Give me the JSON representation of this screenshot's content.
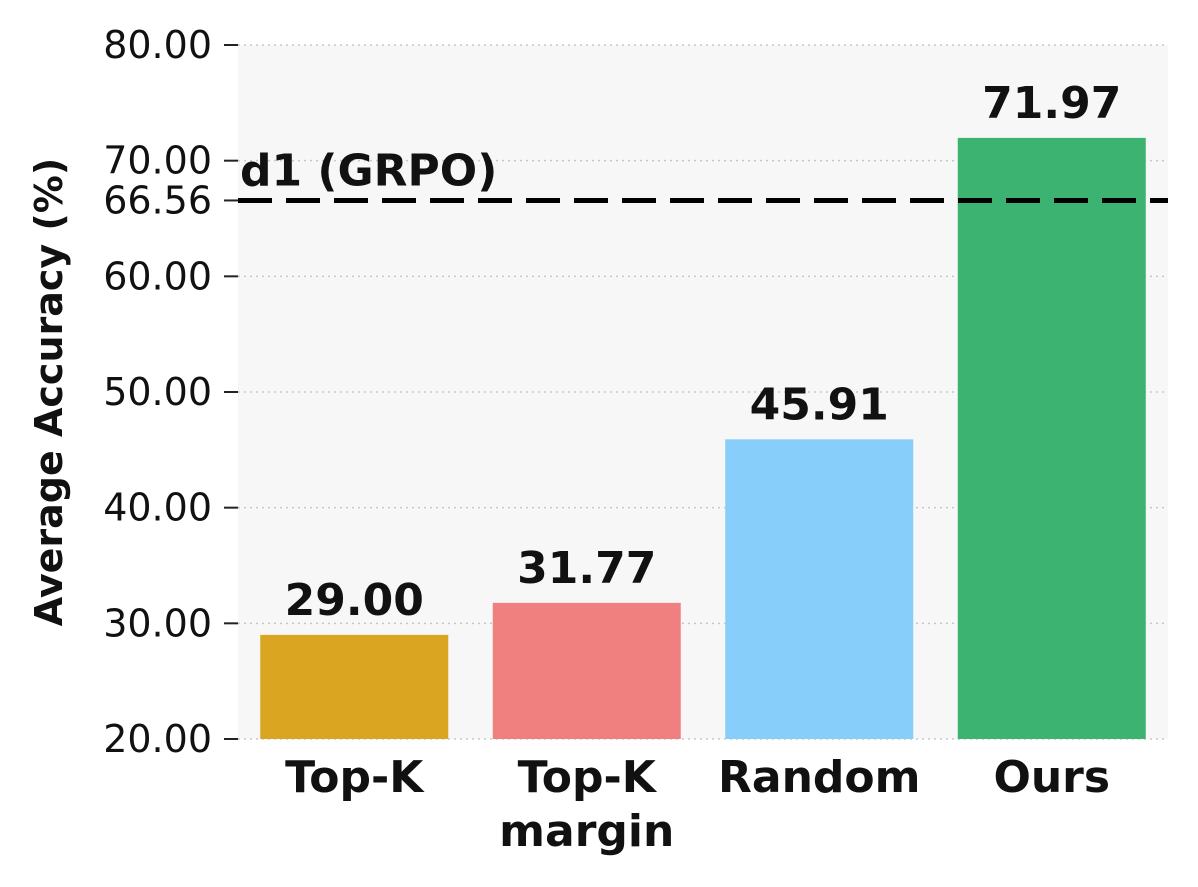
{
  "chart_data": {
    "type": "bar",
    "title": "",
    "xlabel": "",
    "ylabel": "Average Accuracy (%)",
    "ylim": [
      20,
      80
    ],
    "yticks": [
      "20.00",
      "30.00",
      "40.00",
      "50.00",
      "60.00",
      "70.00",
      "80.00"
    ],
    "grid": "horizontal dotted",
    "categories": [
      {
        "lines": [
          "Top-K"
        ]
      },
      {
        "lines": [
          "Top-K",
          "margin"
        ]
      },
      {
        "lines": [
          "Random"
        ]
      },
      {
        "lines": [
          "Ours"
        ]
      }
    ],
    "values": [
      29.0,
      31.77,
      45.91,
      71.97
    ],
    "value_labels": [
      "29.00",
      "31.77",
      "45.91",
      "71.97"
    ],
    "colors": [
      "#DAA520",
      "#F08080",
      "#87CEFA",
      "#3CB371"
    ],
    "reference_line": {
      "label": "d1 (GRPO)",
      "value": 66.56,
      "tick_label": "66.56",
      "style": "dashed",
      "color": "#000000"
    },
    "background": "#f7f7f7"
  }
}
